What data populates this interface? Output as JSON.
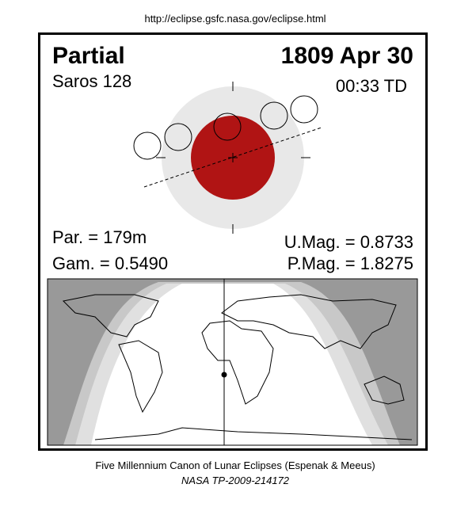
{
  "header": {
    "url": "http://eclipse.gsfc.nasa.gov/eclipse.html"
  },
  "panel": {
    "type": "Partial",
    "date": "1809 Apr 30",
    "saros": "Saros 128",
    "time": "00:33 TD",
    "par": "Par. = 179m",
    "gam": "Gam. = 0.5490",
    "umag": "U.Mag. = 0.8733",
    "pmag": "P.Mag. = 1.8275"
  },
  "footer": {
    "line1": "Five Millennium Canon of Lunar Eclipses (Espenak & Meeus)",
    "line2": "NASA TP-2009-214172"
  }
}
